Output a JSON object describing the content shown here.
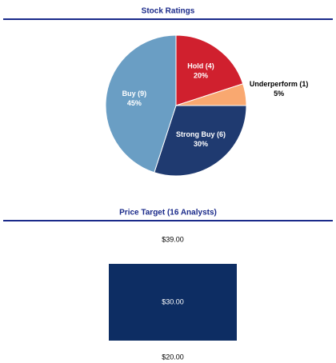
{
  "chart_data": [
    {
      "type": "pie",
      "title": "Stock Ratings",
      "categories": [
        "Hold (4)",
        "Underperform (1)",
        "Strong Buy (6)",
        "Buy (9)"
      ],
      "values": [
        20,
        5,
        30,
        45
      ],
      "value_labels": [
        "20%",
        "5%",
        "30%",
        "45%"
      ],
      "colors": [
        "#d0202e",
        "#f9a870",
        "#1f3a70",
        "#6a9ec4"
      ]
    },
    {
      "type": "range",
      "title": "Price Target (16 Analysts)",
      "values": [
        39,
        30,
        20
      ],
      "value_labels": [
        "$39.00",
        "$30.00",
        "$20.00"
      ],
      "color": "#0d2d63"
    }
  ]
}
